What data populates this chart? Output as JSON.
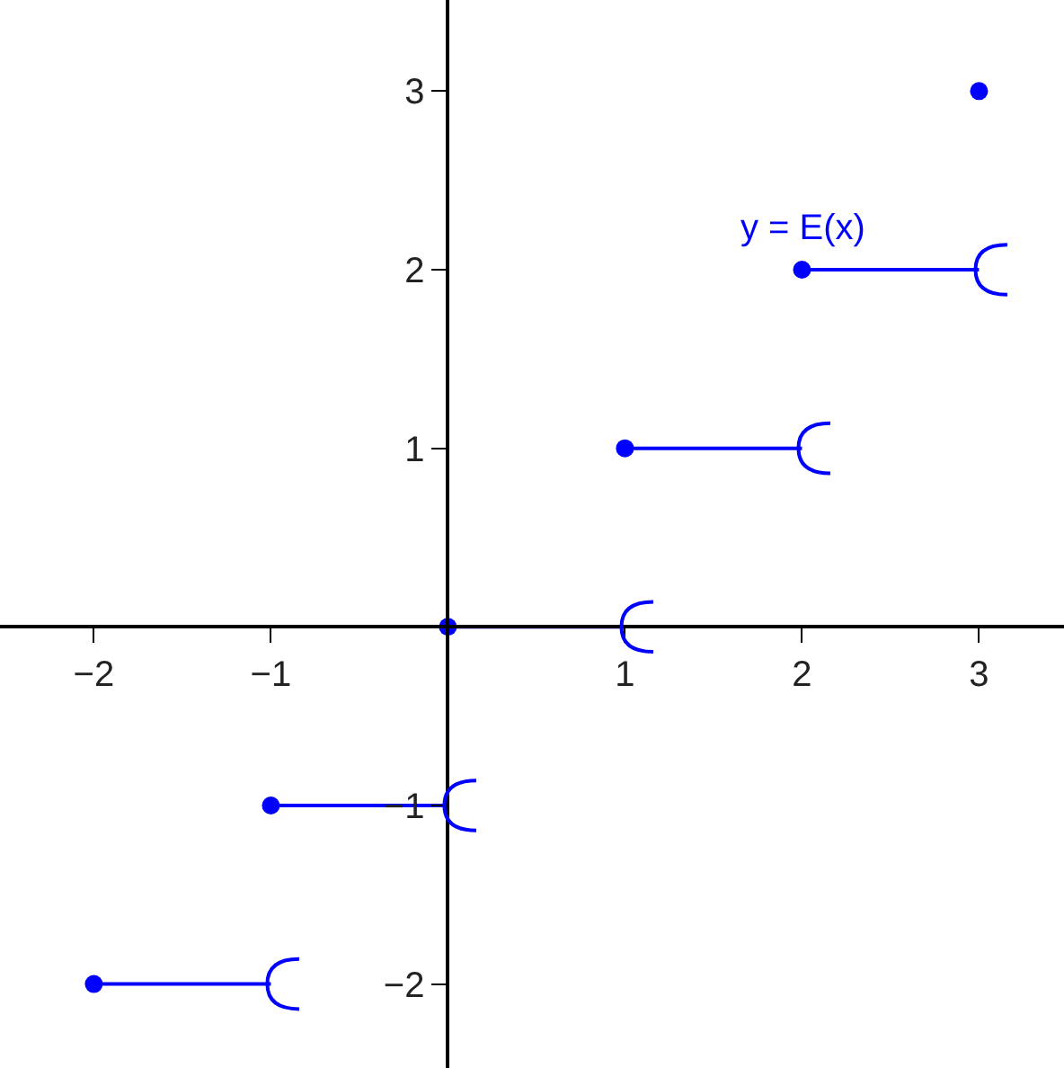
{
  "chart_data": {
    "type": "line",
    "series": [
      {
        "name": "y = E(x)",
        "color": "#0000ff",
        "marker": "none",
        "x": [
          -2,
          -1,
          null,
          -1,
          0,
          null,
          0,
          1,
          null,
          1,
          2,
          null,
          2,
          3
        ],
        "values": [
          -2,
          -2,
          null,
          -1,
          -1,
          null,
          0,
          0,
          null,
          1,
          1,
          null,
          2,
          2
        ]
      },
      {
        "type": "scatter",
        "color": "#0000ff",
        "marker": "circle",
        "x": [
          -2,
          -1,
          0,
          1,
          2,
          3
        ],
        "values": [
          -2,
          -1,
          0,
          1,
          2,
          3
        ]
      }
    ],
    "xlim": [
      -2.53,
      3.48
    ],
    "ylim": [
      -2.47,
      3.51
    ],
    "xticks": [
      {
        "value": -2,
        "label": "−2"
      },
      {
        "value": -1,
        "label": "−1"
      },
      1,
      2,
      3
    ],
    "yticks": [
      {
        "value": -2,
        "label": "−2"
      },
      {
        "value": -1,
        "label": "−1"
      },
      1,
      2,
      3
    ],
    "tick_labels": "xy"
  }
}
